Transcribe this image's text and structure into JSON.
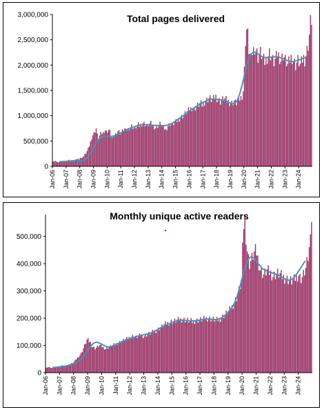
{
  "chart_data": [
    {
      "type": "bar",
      "title": "Total pages delivered",
      "xlabel": "",
      "ylabel": "",
      "ylim": [
        0,
        3000000
      ],
      "yticks": [
        "0",
        "500,000",
        "1,000,000",
        "1,500,000",
        "2,000,000",
        "2,500,000",
        "3,000,000"
      ],
      "categories": [
        "Jan-06",
        "Jan-07",
        "Jan-08",
        "Jan-09",
        "Jan-10",
        "Jan-11",
        "Jan-12",
        "Jan-13",
        "Jan-14",
        "Jan-15",
        "Jan-16",
        "Jan-17",
        "Jan-18",
        "Jan-19",
        "Jan-20",
        "Jan-21",
        "Jan-22",
        "Jan-23",
        "Jan-24"
      ],
      "annual_monthly_values": [
        [
          95000,
          100000,
          110000,
          90000,
          85000,
          80000,
          80000,
          85000,
          100000,
          105000,
          110000,
          100000
        ],
        [
          110000,
          115000,
          125000,
          120000,
          110000,
          105000,
          100000,
          110000,
          130000,
          140000,
          150000,
          140000
        ],
        [
          170000,
          160000,
          180000,
          200000,
          230000,
          260000,
          300000,
          350000,
          400000,
          480000,
          560000,
          620000
        ],
        [
          650000,
          700000,
          750000,
          620000,
          560000,
          600000,
          640000,
          650000,
          660000,
          700000,
          720000,
          680000
        ],
        [
          700000,
          720000,
          690000,
          620000,
          560000,
          560000,
          600000,
          640000,
          680000,
          700000,
          690000,
          660000
        ],
        [
          680000,
          700000,
          720000,
          740000,
          700000,
          720000,
          740000,
          760000,
          780000,
          800000,
          780000,
          750000
        ],
        [
          760000,
          780000,
          800000,
          820000,
          800000,
          820000,
          840000,
          860000,
          850000,
          830000,
          810000,
          800000
        ],
        [
          820000,
          840000,
          850000,
          830000,
          800000,
          780000,
          760000,
          780000,
          800000,
          820000,
          840000,
          850000
        ],
        [
          780000,
          760000,
          740000,
          720000,
          760000,
          800000,
          820000,
          840000,
          830000,
          820000,
          850000,
          860000
        ],
        [
          880000,
          900000,
          920000,
          940000,
          960000,
          980000,
          1000000,
          1020000,
          1040000,
          1060000,
          1080000,
          1100000
        ],
        [
          1120000,
          1140000,
          1160000,
          1150000,
          1130000,
          1160000,
          1180000,
          1200000,
          1220000,
          1240000,
          1230000,
          1210000
        ],
        [
          1250000,
          1270000,
          1290000,
          1310000,
          1330000,
          1350000,
          1340000,
          1320000,
          1300000,
          1330000,
          1360000,
          1380000
        ],
        [
          1350000,
          1320000,
          1300000,
          1280000,
          1300000,
          1320000,
          1340000,
          1330000,
          1310000,
          1290000,
          1280000,
          1270000
        ],
        [
          1260000,
          1250000,
          1270000,
          1290000,
          1260000,
          1250000,
          1280000,
          1300000,
          1330000,
          1360000,
          1400000,
          1500000
        ],
        [
          1900000,
          2500000,
          2700000,
          2600000,
          2300000,
          2200000,
          2100000,
          2250000,
          2300000,
          2350000,
          2300000,
          2250000
        ],
        [
          2150000,
          2200000,
          2250000,
          2200000,
          2150000,
          2100000,
          2050000,
          2100000,
          2150000,
          2200000,
          2250000,
          2200000
        ],
        [
          2150000,
          2100000,
          2050000,
          2100000,
          2150000,
          2200000,
          2200000,
          2150000,
          2100000,
          2150000,
          2200000,
          2150000
        ],
        [
          2100000,
          2050000,
          2000000,
          2050000,
          2100000,
          2150000,
          2150000,
          2100000,
          2050000,
          2000000,
          2050000,
          2100000
        ],
        [
          2050000,
          2000000,
          2050000,
          2100000,
          2150000,
          2100000,
          2200000,
          2300000,
          2400000,
          2600000,
          2850000,
          2900000
        ]
      ],
      "trend_values": [
        90000,
        110000,
        160000,
        560000,
        600000,
        730000,
        820000,
        810000,
        820000,
        990000,
        1180000,
        1320000,
        1310000,
        1300000,
        2200000,
        2150000,
        2160000,
        2070000,
        2150000
      ],
      "bar_color": "#993366",
      "trend_color": "#4f8fb3",
      "grid": false,
      "legend": "none"
    },
    {
      "type": "bar",
      "title": "Monthly unique active readers",
      "xlabel": "",
      "ylabel": "",
      "ylim": [
        0,
        580000
      ],
      "yticks": [
        "0",
        "100,000",
        "200,000",
        "300,000",
        "400,000",
        "500,000"
      ],
      "categories": [
        "Jan-06",
        "Jan-07",
        "Jan-08",
        "Jan-09",
        "Jan-10",
        "Jan-11",
        "Jan-12",
        "Jan-13",
        "Jan-14",
        "Jan-15",
        "Jan-16",
        "Jan-17",
        "Jan-18",
        "Jan-19",
        "Jan-20",
        "Jan-21",
        "Jan-22",
        "Jan-23",
        "Jan-24"
      ],
      "annual_monthly_values": [
        [
          18000,
          19000,
          20000,
          19000,
          18000,
          17000,
          18000,
          19000,
          20000,
          21000,
          22000,
          23000
        ],
        [
          24000,
          25000,
          26000,
          25000,
          24000,
          25000,
          27000,
          28000,
          30000,
          32000,
          34000,
          36000
        ],
        [
          40000,
          45000,
          50000,
          55000,
          60000,
          65000,
          70000,
          80000,
          90000,
          100000,
          110000,
          120000
        ],
        [
          120000,
          115000,
          110000,
          100000,
          95000,
          92000,
          90000,
          92000,
          95000,
          98000,
          100000,
          98000
        ],
        [
          95000,
          92000,
          90000,
          88000,
          90000,
          92000,
          94000,
          96000,
          98000,
          100000,
          102000,
          104000
        ],
        [
          106000,
          108000,
          110000,
          112000,
          114000,
          116000,
          118000,
          120000,
          122000,
          124000,
          126000,
          128000
        ],
        [
          130000,
          132000,
          134000,
          133000,
          131000,
          130000,
          132000,
          134000,
          136000,
          138000,
          137000,
          135000
        ],
        [
          135000,
          137000,
          139000,
          141000,
          143000,
          145000,
          147000,
          149000,
          151000,
          153000,
          155000,
          157000
        ],
        [
          160000,
          163000,
          166000,
          169000,
          172000,
          175000,
          178000,
          180000,
          182000,
          184000,
          186000,
          188000
        ],
        [
          188000,
          189000,
          190000,
          191000,
          192000,
          193000,
          194000,
          195000,
          196000,
          196000,
          195000,
          194000
        ],
        [
          193000,
          192000,
          191000,
          190000,
          189000,
          188000,
          189000,
          190000,
          191000,
          192000,
          193000,
          194000
        ],
        [
          194000,
          195000,
          196000,
          197000,
          198000,
          199000,
          200000,
          200000,
          199000,
          198000,
          197000,
          196000
        ],
        [
          195000,
          194000,
          193000,
          194000,
          196000,
          198000,
          202000,
          206000,
          210000,
          214000,
          218000,
          222000
        ],
        [
          225000,
          230000,
          236000,
          242000,
          250000,
          258000,
          266000,
          276000,
          288000,
          302000,
          318000,
          336000
        ],
        [
          450000,
          540000,
          560000,
          500000,
          450000,
          420000,
          400000,
          410000,
          420000,
          430000,
          440000,
          445000
        ],
        [
          440000,
          420000,
          400000,
          380000,
          370000,
          365000,
          360000,
          365000,
          370000,
          375000,
          372000,
          368000
        ],
        [
          365000,
          360000,
          355000,
          358000,
          360000,
          362000,
          364000,
          362000,
          360000,
          355000,
          352000,
          350000
        ],
        [
          348000,
          346000,
          344000,
          342000,
          340000,
          338000,
          336000,
          338000,
          340000,
          345000,
          350000,
          355000
        ],
        [
          360000,
          350000,
          345000,
          350000,
          360000,
          370000,
          380000,
          400000,
          420000,
          450000,
          540000,
          560000
        ]
      ],
      "trend_values": [
        19000,
        25000,
        48000,
        110000,
        94000,
        115000,
        133000,
        146000,
        172000,
        192000,
        190000,
        197000,
        200000,
        260000,
        420000,
        380000,
        360000,
        342000,
        410000
      ],
      "bar_color": "#993366",
      "trend_color": "#4f8fb3",
      "grid": false,
      "legend": "none"
    }
  ]
}
